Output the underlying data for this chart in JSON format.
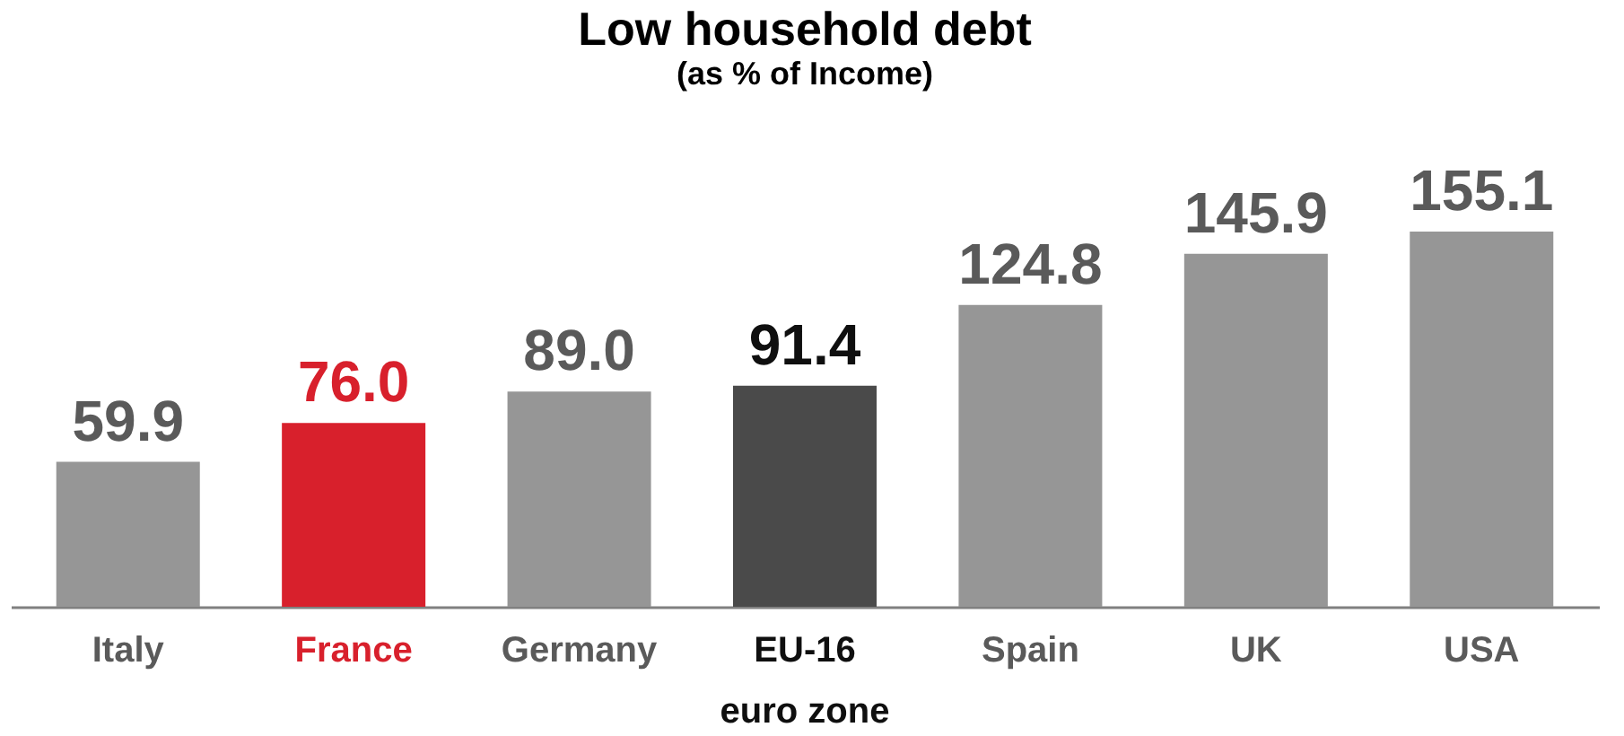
{
  "chart_data": {
    "type": "bar",
    "title": "Low household debt",
    "subtitle": "(as % of Income)",
    "categories": [
      "Italy",
      "France",
      "Germany",
      "EU-16\neuro zone",
      "Spain",
      "UK",
      "USA"
    ],
    "values": [
      59.9,
      76.0,
      89.0,
      91.4,
      124.8,
      145.9,
      155.1
    ],
    "colors": [
      "#969696",
      "#d8202c",
      "#969696",
      "#4a4a4a",
      "#969696",
      "#969696",
      "#969696"
    ],
    "value_labels": [
      "59.9",
      "76.0",
      "89.0",
      "91.4",
      "124.8",
      "145.9",
      "155.1"
    ]
  }
}
